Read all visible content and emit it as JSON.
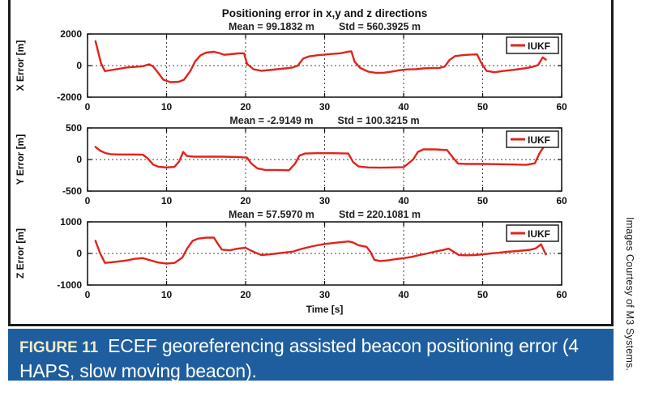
{
  "title": "Positioning error in x,y and z directions",
  "colors": {
    "line": "#E2231A",
    "caption_bg": "#1F5E9E",
    "figure_label": "#F2ECC4",
    "caption_text": "#FFFFFF",
    "frame": "#1a1a1a"
  },
  "caption": {
    "label": "FIGURE 11",
    "text": "ECEF georeferencing assisted beacon positioning error (4 HAPS, slow moving beacon)."
  },
  "credit": "Images Courtesy of M3 Systems.",
  "chart_data": [
    {
      "type": "line",
      "stats": {
        "mean": "Mean = 99.1832 m",
        "std": "Std = 560.3925 m"
      },
      "ylabel": "X Error [m]",
      "xlabel": "",
      "legend": "IUKF",
      "ylim": [
        -2000,
        2000
      ],
      "yticks": [
        2000,
        0,
        -2000
      ],
      "xlim": [
        0,
        60
      ],
      "xticks": [
        0,
        10,
        20,
        30,
        40,
        50,
        60
      ],
      "grid": "dotted, vertical at x ticks and horizontal at 0",
      "legend_position": "top-right",
      "series": [
        {
          "name": "IUKF",
          "x": [
            1,
            1.7,
            2.2,
            3,
            4,
            5,
            6,
            7,
            7.8,
            8.3,
            9,
            9.6,
            10.5,
            11.5,
            12.2,
            13,
            13.6,
            14.3,
            15,
            16,
            16.6,
            17.3,
            18,
            19,
            19.8,
            20.2,
            21,
            22,
            23,
            24,
            25,
            26,
            26.6,
            27.3,
            28,
            29,
            30,
            31,
            32,
            33,
            33.4,
            33.8,
            34.5,
            35.5,
            36.5,
            37.5,
            38.5,
            39.5,
            40.5,
            41.5,
            42.5,
            43.5,
            44.5,
            45.2,
            45.8,
            46.5,
            47.5,
            48.5,
            49.3,
            49.8,
            50.5,
            51.5,
            52.5,
            53.5,
            54.5,
            55.5,
            56.3,
            57,
            57.6,
            58
          ],
          "y": [
            1550,
            150,
            -350,
            -280,
            -200,
            -120,
            -80,
            -40,
            80,
            -50,
            -500,
            -900,
            -1050,
            -1030,
            -900,
            -350,
            250,
            650,
            820,
            870,
            800,
            680,
            720,
            770,
            780,
            100,
            -230,
            -330,
            -280,
            -230,
            -180,
            -120,
            0,
            450,
            580,
            650,
            700,
            740,
            780,
            880,
            900,
            250,
            -150,
            -380,
            -460,
            -450,
            -380,
            -290,
            -240,
            -230,
            -180,
            -160,
            -150,
            -60,
            350,
            600,
            660,
            700,
            710,
            200,
            -340,
            -420,
            -350,
            -290,
            -230,
            -160,
            -80,
            30,
            520,
            380
          ]
        }
      ]
    },
    {
      "type": "line",
      "stats": {
        "mean": "Mean = -2.9149 m",
        "std": "Std = 100.3215 m"
      },
      "ylabel": "Y Error [m]",
      "xlabel": "",
      "legend": "IUKF",
      "ylim": [
        -500,
        500
      ],
      "yticks": [
        500,
        0,
        -500
      ],
      "xlim": [
        0,
        60
      ],
      "xticks": [
        0,
        10,
        20,
        30,
        40,
        50,
        60
      ],
      "grid": "dotted, vertical at x ticks and horizontal at 0",
      "legend_position": "top-right",
      "series": [
        {
          "name": "IUKF",
          "x": [
            1,
            1.6,
            2.3,
            3,
            4,
            5,
            6,
            7,
            7.6,
            8.3,
            9,
            10,
            11,
            11.6,
            12.1,
            12.6,
            13.5,
            15,
            17,
            19,
            20.2,
            20.7,
            21.5,
            22.5,
            24,
            25.5,
            26.3,
            26.8,
            27.5,
            29,
            31,
            33,
            33.6,
            34.3,
            35.5,
            37,
            38.5,
            40,
            41.2,
            41.8,
            42.5,
            44,
            45.5,
            46.3,
            46.9,
            48,
            50,
            52,
            54,
            55.5,
            56.6,
            57.2,
            57.7,
            58
          ],
          "y": [
            200,
            140,
            100,
            85,
            80,
            80,
            80,
            75,
            20,
            -80,
            -115,
            -125,
            -115,
            -30,
            120,
            55,
            45,
            45,
            45,
            40,
            30,
            -60,
            -140,
            -165,
            -165,
            -170,
            -60,
            60,
            95,
            100,
            100,
            95,
            -40,
            -110,
            -125,
            -130,
            -125,
            -120,
            0,
            120,
            160,
            160,
            150,
            20,
            -65,
            -70,
            -70,
            -75,
            -80,
            -85,
            -60,
            100,
            195,
            210
          ]
        }
      ]
    },
    {
      "type": "line",
      "stats": {
        "mean": "Mean = 57.5970 m",
        "std": "Std = 220.1081 m"
      },
      "ylabel": "Z Error [m]",
      "xlabel": "Time [s]",
      "legend": "IUKF",
      "ylim": [
        -1000,
        1000
      ],
      "yticks": [
        1000,
        0,
        -1000
      ],
      "xlim": [
        0,
        60
      ],
      "xticks": [
        0,
        10,
        20,
        30,
        40,
        50,
        60
      ],
      "grid": "dotted, vertical at x ticks and horizontal at 0",
      "legend_position": "top-right",
      "series": [
        {
          "name": "IUKF",
          "x": [
            1,
            1.6,
            2.2,
            3,
            4,
            5,
            6,
            7,
            8,
            9,
            10,
            11,
            12,
            12.6,
            13.3,
            14,
            15,
            16,
            16.5,
            17,
            18,
            19,
            20,
            20.6,
            21.3,
            22,
            23,
            24,
            25,
            26,
            26.6,
            27.5,
            28.5,
            30,
            31.5,
            33,
            33.6,
            34.3,
            35.3,
            35.8,
            36.3,
            37,
            38,
            39,
            40,
            41,
            42,
            43,
            44,
            45,
            45.7,
            46.3,
            47,
            48,
            49,
            50,
            51,
            52,
            53,
            54,
            55,
            56,
            56.7,
            57.4,
            58
          ],
          "y": [
            400,
            0,
            -300,
            -280,
            -250,
            -220,
            -170,
            -150,
            -220,
            -290,
            -320,
            -300,
            -130,
            150,
            400,
            470,
            500,
            500,
            300,
            120,
            100,
            150,
            180,
            100,
            20,
            -50,
            -30,
            0,
            30,
            60,
            110,
            170,
            230,
            300,
            340,
            380,
            350,
            260,
            210,
            50,
            -200,
            -240,
            -220,
            -180,
            -150,
            -110,
            -50,
            0,
            60,
            110,
            150,
            60,
            -50,
            -60,
            -50,
            -30,
            0,
            20,
            50,
            70,
            90,
            115,
            160,
            290,
            -30
          ]
        }
      ]
    }
  ]
}
